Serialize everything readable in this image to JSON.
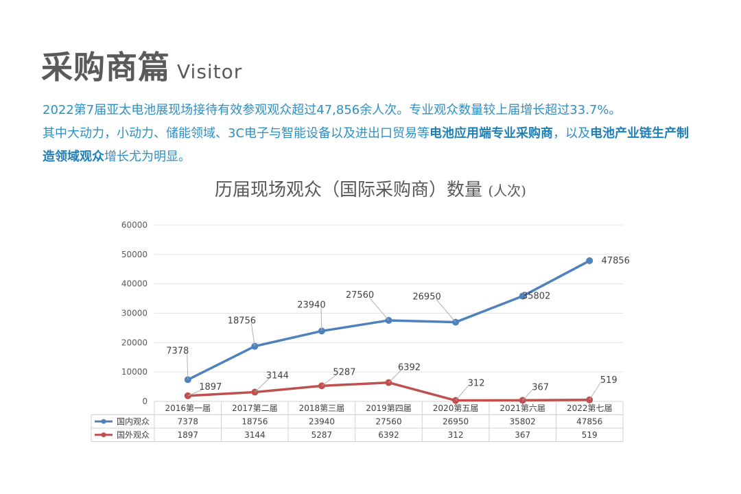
{
  "header": {
    "title": "采购商篇",
    "title_en": "Visitor"
  },
  "intro": {
    "line1": "2022第7届亚太电池展现场接待有效参观观众超过47,856余人次。专业观众数量较上届增长超过33.7%。",
    "line2_a": "其中大动力，小动力、储能领域、3C电子与智能设备以及进出口贸易等",
    "line2_b": "电池应用端专业采购商",
    "line2_c": "，以及",
    "line2_d": "电池产业链生产制造领域观众",
    "line2_e": "增长尤为明显。"
  },
  "chart_title": {
    "main": "历届现场观众（国际采购商）数量",
    "unit": "(人次)"
  },
  "chart_data": {
    "type": "line",
    "categories": [
      "2016第一届",
      "2017第二届",
      "2018第三届",
      "2019第四届",
      "2020第五届",
      "2021第六届",
      "2022第七届"
    ],
    "series": [
      {
        "name": "国内观众",
        "color": "#4f81bd",
        "values": [
          7378,
          18756,
          23940,
          27560,
          26950,
          35802,
          47856
        ]
      },
      {
        "name": "国外观众",
        "color": "#c0504d",
        "values": [
          1897,
          3144,
          5287,
          6392,
          312,
          367,
          519
        ]
      }
    ],
    "yticks": [
      "0",
      "10000",
      "20000",
      "30000",
      "40000",
      "50000",
      "60000"
    ],
    "ylim": [
      0,
      60000
    ],
    "grid": true,
    "legend": "data-table"
  }
}
